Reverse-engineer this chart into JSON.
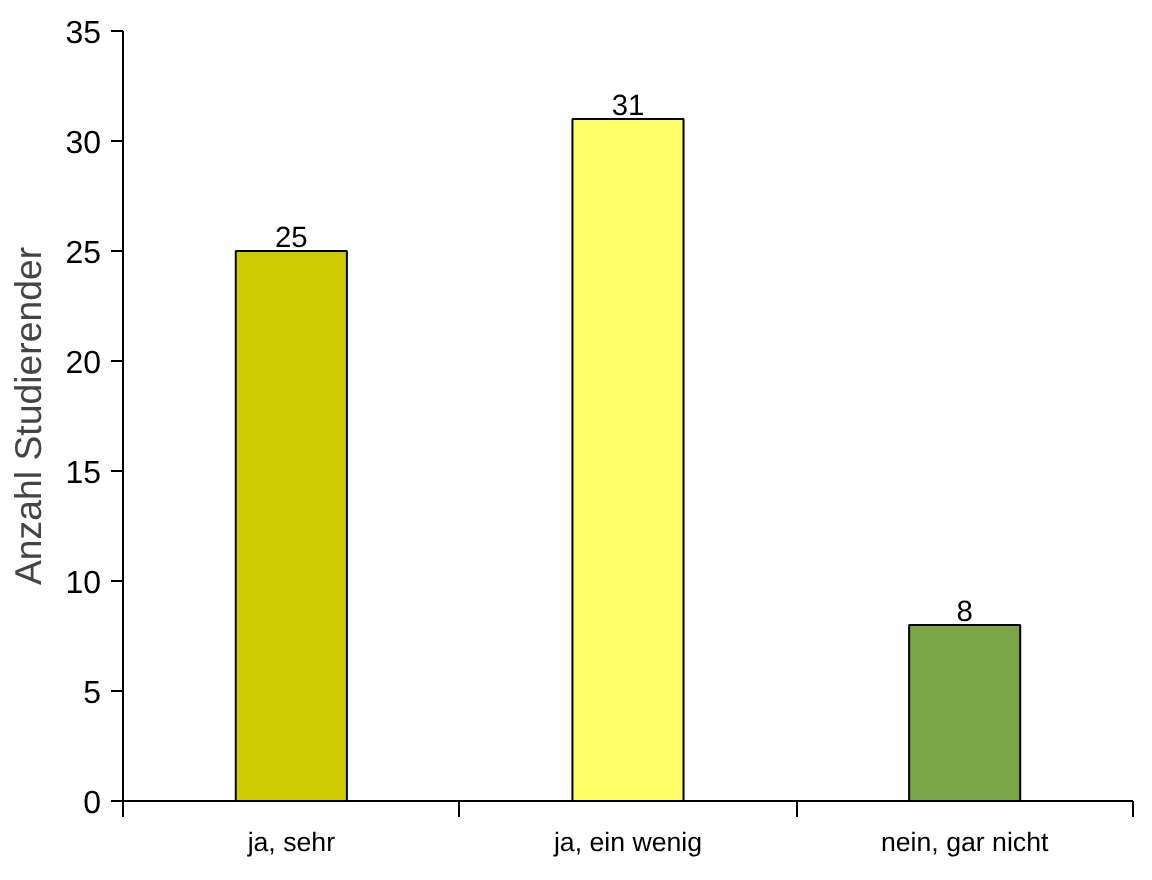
{
  "chart_data": {
    "type": "bar",
    "ylabel": "Anzahl Studierender",
    "categories": [
      "ja, sehr",
      "ja, ein wenig",
      "nein, gar nicht"
    ],
    "values": [
      25,
      31,
      8
    ],
    "colors": [
      "#cccc00",
      "#ffff66",
      "#7aa646"
    ],
    "ylim": [
      0,
      35
    ],
    "yticks": [
      0,
      5,
      10,
      15,
      20,
      25,
      30,
      35
    ],
    "data_labels": true,
    "grid": false
  }
}
